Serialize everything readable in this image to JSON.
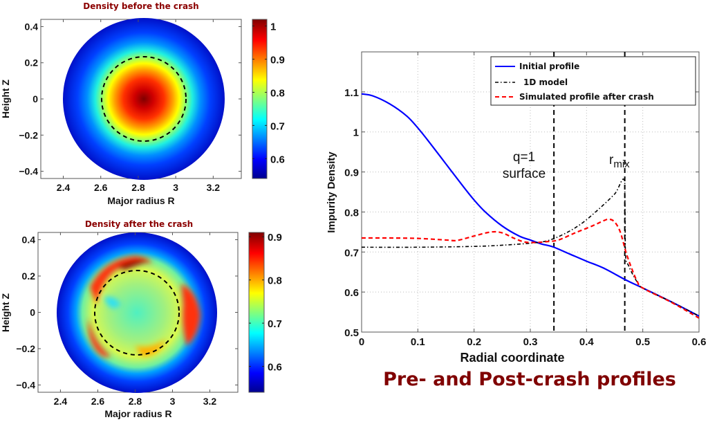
{
  "chart_data": [
    {
      "type": "heatmap",
      "title": "Density before the crash",
      "xlabel": "Major radius R",
      "ylabel": "Height Z",
      "xlim": [
        2.28,
        3.35
      ],
      "ylim": [
        -0.44,
        0.44
      ],
      "xticks": [
        "2.4",
        "2.6",
        "2.8",
        "3",
        "3.2"
      ],
      "yticks": [
        "0.4",
        "0.2",
        "0",
        "−0.2",
        "−0.4"
      ],
      "colorbar": {
        "ticks": [
          "1",
          "0.9",
          "0.8",
          "0.7",
          "0.6"
        ],
        "range": [
          0.54,
          1.02
        ]
      },
      "center": {
        "R": 2.83,
        "Z": 0
      },
      "minor_radius": 0.44,
      "q1_surface_radius": 0.24,
      "peak_value": 1.01,
      "edge_value": 0.55
    },
    {
      "type": "heatmap",
      "title": "Density after the crash",
      "xlabel": "Major radius R",
      "ylabel": "Height Z",
      "xlim": [
        2.28,
        3.35
      ],
      "ylim": [
        -0.44,
        0.44
      ],
      "xticks": [
        "2.4",
        "2.6",
        "2.8",
        "3",
        "3.2"
      ],
      "yticks": [
        "0.4",
        "0.2",
        "0",
        "−0.2",
        "−0.4"
      ],
      "colorbar": {
        "ticks": [
          "0.9",
          "0.8",
          "0.7",
          "0.6"
        ],
        "range": [
          0.54,
          0.91
        ]
      },
      "center": {
        "R": 2.83,
        "Z": 0
      },
      "minor_radius": 0.44,
      "q1_surface_radius": 0.24,
      "core_value": 0.72,
      "ring_value": 0.88,
      "edge_value": 0.55
    },
    {
      "type": "line",
      "title": "Pre- and Post-crash profiles",
      "xlabel": "Radial coordinate",
      "ylabel": "Impurity Density",
      "xlim": [
        0,
        0.6
      ],
      "ylim": [
        0.5,
        1.2
      ],
      "xticks": [
        "0",
        "0.1",
        "0.2",
        "0.3",
        "0.4",
        "0.5",
        "0.6"
      ],
      "yticks": [
        "0.5",
        "0.6",
        "0.7",
        "0.8",
        "0.9",
        "1",
        "1.1"
      ],
      "grid": true,
      "legend_position": "top-right",
      "series": [
        {
          "name": "Initial profile",
          "color": "#0000ff",
          "style": "solid",
          "x": [
            0,
            0.02,
            0.05,
            0.08,
            0.1,
            0.12,
            0.15,
            0.18,
            0.2,
            0.22,
            0.25,
            0.28,
            0.3,
            0.32,
            0.34,
            0.37,
            0.4,
            0.43,
            0.47,
            0.5,
            0.55,
            0.6
          ],
          "y": [
            1.095,
            1.09,
            1.07,
            1.04,
            1.01,
            0.975,
            0.92,
            0.865,
            0.83,
            0.8,
            0.765,
            0.74,
            0.73,
            0.72,
            0.713,
            0.695,
            0.677,
            0.66,
            0.63,
            0.61,
            0.576,
            0.54
          ]
        },
        {
          "name": "1D model",
          "color": "#000000",
          "style": "dashdot",
          "x": [
            0,
            0.1,
            0.2,
            0.25,
            0.3,
            0.33,
            0.36,
            0.39,
            0.42,
            0.45,
            0.468,
            0.469,
            0.475,
            0.49,
            0.5,
            0.55,
            0.6
          ],
          "y": [
            0.712,
            0.712,
            0.714,
            0.717,
            0.722,
            0.728,
            0.745,
            0.77,
            0.805,
            0.845,
            0.875,
            0.7,
            0.665,
            0.625,
            0.61,
            0.576,
            0.54
          ]
        },
        {
          "name": "Simulated profile after crash",
          "color": "#ff0000",
          "style": "dashed",
          "x": [
            0,
            0.05,
            0.1,
            0.15,
            0.17,
            0.2,
            0.23,
            0.25,
            0.27,
            0.29,
            0.31,
            0.33,
            0.35,
            0.38,
            0.41,
            0.43,
            0.44,
            0.45,
            0.46,
            0.47,
            0.48,
            0.49,
            0.5,
            0.55,
            0.6
          ],
          "y": [
            0.735,
            0.735,
            0.734,
            0.73,
            0.729,
            0.74,
            0.75,
            0.748,
            0.735,
            0.725,
            0.724,
            0.726,
            0.73,
            0.748,
            0.765,
            0.778,
            0.782,
            0.775,
            0.75,
            0.7,
            0.66,
            0.627,
            0.61,
            0.575,
            0.535
          ]
        }
      ],
      "vlines": [
        {
          "x": 0.342,
          "label_lines": [
            "q=1",
            "surface"
          ]
        },
        {
          "x": 0.468,
          "label": "r",
          "label_sub": "mix"
        }
      ]
    }
  ]
}
